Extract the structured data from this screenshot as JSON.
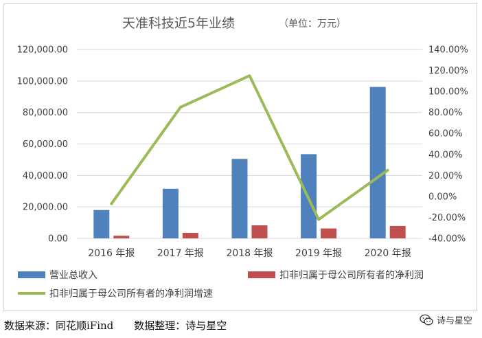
{
  "chart_data": {
    "type": "bar",
    "title": "天准科技近5年业绩",
    "subtitle": "（单位：万元）",
    "categories": [
      "2016 年报",
      "2017 年报",
      "2018 年报",
      "2019 年报",
      "2020 年报"
    ],
    "series": [
      {
        "name": "营业总收入",
        "type": "bar",
        "axis": "left",
        "color": "#4f81bd",
        "values": [
          18000,
          31500,
          50500,
          53500,
          96200
        ]
      },
      {
        "name": "扣非归属于母公司所有者的净利润",
        "type": "bar",
        "axis": "left",
        "color": "#c0504d",
        "values": [
          1700,
          3500,
          8300,
          6300,
          7900
        ]
      },
      {
        "name": "扣非归属于母公司所有者的净利润增速",
        "type": "line",
        "axis": "right",
        "color": "#9bbb59",
        "values": [
          -7,
          85,
          115,
          -22,
          25
        ]
      }
    ],
    "left_axis": {
      "min": 0,
      "max": 120000,
      "step": 20000,
      "tick_labels": [
        "0.00",
        "20,000.00",
        "40,000.00",
        "60,000.00",
        "80,000.00",
        "100,000.00",
        "120,000.00"
      ]
    },
    "right_axis": {
      "min": -40,
      "max": 140,
      "step": 20,
      "tick_labels": [
        "-40.00%",
        "-20.00%",
        "0.00%",
        "20.00%",
        "40.00%",
        "60.00%",
        "80.00%",
        "100.00%",
        "120.00%",
        "140.00%"
      ]
    },
    "grid": true,
    "legend_position": "bottom"
  },
  "footer": {
    "source": "数据来源：同花顺iFind",
    "compiler": "数据整理：诗与星空"
  },
  "watermark": {
    "label": "诗与星空",
    "icon": "wechat-icon"
  }
}
